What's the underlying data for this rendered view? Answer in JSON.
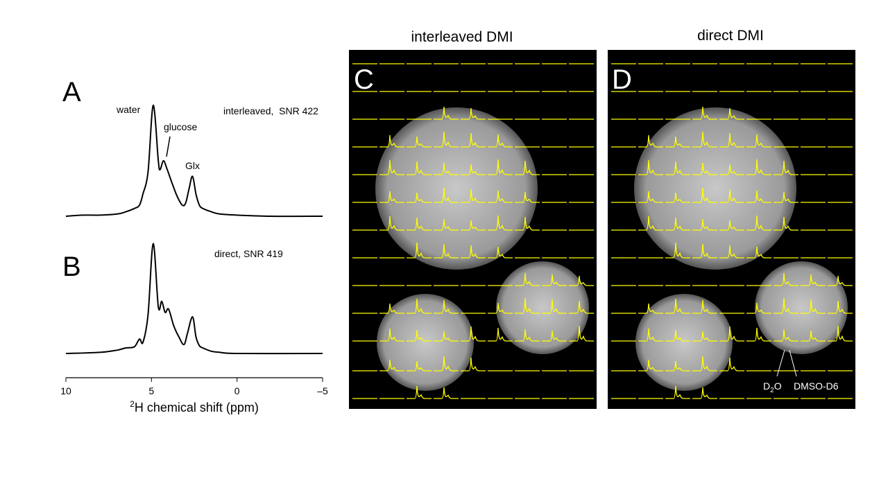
{
  "chart_data": [
    {
      "type": "line",
      "panel": "A",
      "label": "interleaved,  SNR 422",
      "annotations": [
        "water",
        "glucose",
        "Glx"
      ],
      "color": "#000000",
      "xlim": [
        10,
        -5
      ],
      "x": [
        10,
        9,
        8,
        7,
        6.5,
        6,
        5.7,
        5.5,
        5.2,
        4.9,
        4.6,
        4.5,
        4.3,
        4.1,
        3.8,
        3.5,
        3.2,
        3.0,
        2.8,
        2.6,
        2.4,
        2.2,
        2.0,
        1.5,
        1.0,
        0,
        -2,
        -5
      ],
      "values": [
        0,
        1,
        1,
        2,
        4,
        7,
        10,
        20,
        40,
        100,
        50,
        42,
        50,
        43,
        30,
        18,
        10,
        12,
        25,
        36,
        20,
        10,
        7,
        4,
        2,
        1,
        0,
        0
      ]
    },
    {
      "type": "line",
      "panel": "B",
      "label": "direct, SNR 419",
      "color": "#000000",
      "xlim": [
        10,
        -5
      ],
      "xticks": [
        10,
        5,
        0,
        {
          "value": -5,
          "label": "–5"
        }
      ],
      "xlabel_sup": "2",
      "xlabel": "H chemical shift (ppm)",
      "x": [
        10,
        8,
        7,
        6.5,
        6,
        5.7,
        5.5,
        5.2,
        4.9,
        4.6,
        4.4,
        4.2,
        4.0,
        3.7,
        3.4,
        3.1,
        2.9,
        2.6,
        2.4,
        2.2,
        2.0,
        1.5,
        1,
        0,
        -5
      ],
      "values": [
        0,
        1,
        3,
        5,
        6,
        13,
        10,
        35,
        99,
        42,
        47,
        37,
        40,
        25,
        15,
        8,
        18,
        33,
        15,
        7,
        5,
        2,
        1,
        0,
        0
      ]
    }
  ],
  "images": [
    {
      "title": "interleaved DMI",
      "panel": "C"
    },
    {
      "title": "direct DMI",
      "panel": "D",
      "labels": {
        "d2o": "D",
        "d2o_sub": "2",
        "d2o_end": "O",
        "dmso": "DMSO-D6"
      }
    }
  ]
}
